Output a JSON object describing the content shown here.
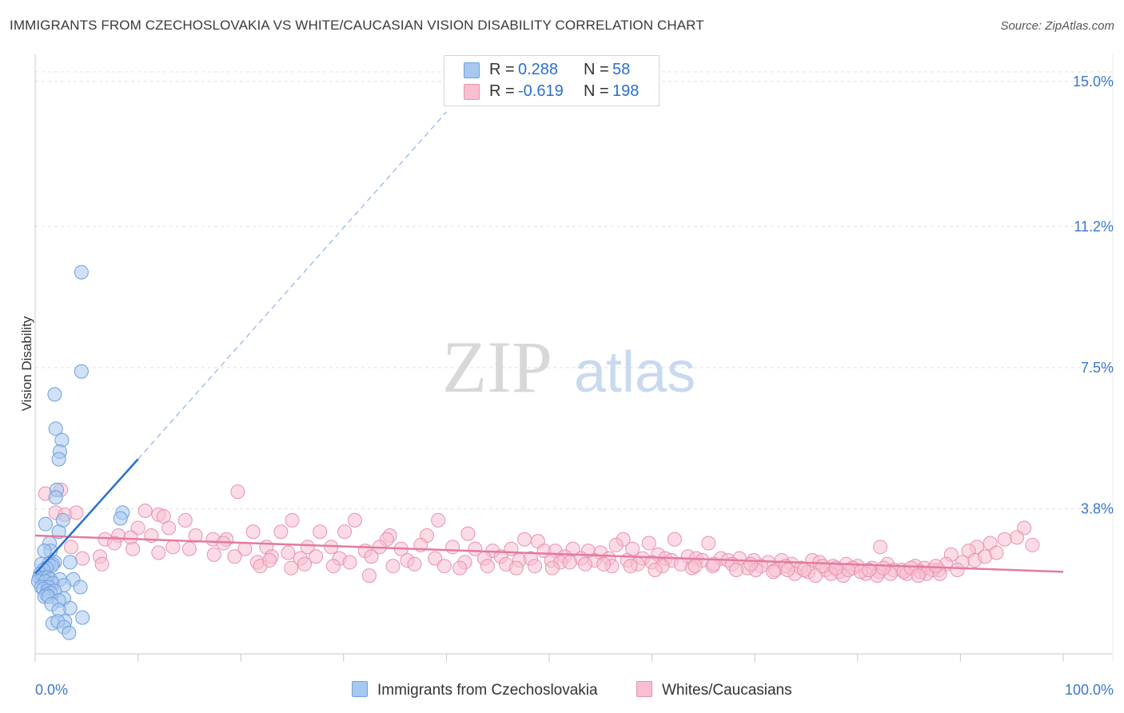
{
  "title": "IMMIGRANTS FROM CZECHOSLOVAKIA VS WHITE/CAUCASIAN VISION DISABILITY CORRELATION CHART",
  "source": "Source: ZipAtlas.com",
  "watermark": {
    "zip": "ZIP",
    "atlas": "atlas"
  },
  "legend": [
    {
      "r_label": "R =",
      "r_value": "0.288",
      "n_label": "N =",
      "n_value": "58",
      "color": "#a9c8f0",
      "border": "#6f9fdc"
    },
    {
      "r_label": "R =",
      "r_value": "-0.619",
      "n_label": "N =",
      "n_value": "198",
      "color": "#f7bfd0",
      "border": "#e792ad"
    }
  ],
  "bottom_legend": [
    "Immigrants from Czechoslovakia",
    "Whites/Caucasians"
  ],
  "chart_data": {
    "type": "scatter",
    "title": "IMMIGRANTS FROM CZECHOSLOVAKIA VS WHITE/CAUCASIAN VISION DISABILITY CORRELATION CHART",
    "xlabel": "",
    "ylabel": "Vision Disability",
    "xlim": [
      0,
      100
    ],
    "ylim": [
      0,
      15.5
    ],
    "x_tick_labels": [
      "0.0%",
      "100.0%"
    ],
    "y_ticks": [
      3.8,
      7.5,
      11.2,
      15.0
    ],
    "y_tick_labels": [
      "3.8%",
      "7.5%",
      "11.2%",
      "15.0%"
    ],
    "grid": true,
    "series": [
      {
        "name": "Immigrants from Czechoslovakia",
        "color": "#5f95dc",
        "fill": "#a9c8f0",
        "R": 0.288,
        "N": 58,
        "trend": {
          "x0": 0,
          "y0": 2.1,
          "x1": 10,
          "y1": 5.1,
          "dash_to_x": 40,
          "dash_to_y": 14.2
        },
        "points": [
          [
            4.5,
            10.0
          ],
          [
            4.5,
            7.4
          ],
          [
            1.9,
            6.8
          ],
          [
            2.0,
            5.9
          ],
          [
            2.6,
            5.6
          ],
          [
            2.4,
            5.3
          ],
          [
            2.3,
            5.1
          ],
          [
            2.1,
            4.3
          ],
          [
            2.0,
            4.1
          ],
          [
            8.5,
            3.7
          ],
          [
            8.3,
            3.55
          ],
          [
            2.7,
            3.5
          ],
          [
            1.0,
            3.4
          ],
          [
            2.3,
            3.2
          ],
          [
            1.4,
            2.9
          ],
          [
            1.5,
            2.7
          ],
          [
            0.9,
            2.7
          ],
          [
            3.4,
            2.4
          ],
          [
            1.9,
            2.4
          ],
          [
            1.7,
            2.35
          ],
          [
            1.3,
            2.35
          ],
          [
            1.6,
            2.3
          ],
          [
            0.6,
            2.35
          ],
          [
            1.1,
            2.25
          ],
          [
            0.8,
            2.2
          ],
          [
            0.5,
            2.1
          ],
          [
            0.4,
            2.0
          ],
          [
            0.7,
            1.95
          ],
          [
            0.9,
            2.0
          ],
          [
            1.2,
            2.0
          ],
          [
            1.5,
            1.95
          ],
          [
            3.7,
            1.95
          ],
          [
            2.4,
            1.95
          ],
          [
            0.3,
            1.9
          ],
          [
            1.0,
            1.9
          ],
          [
            1.7,
            1.85
          ],
          [
            2.8,
            1.8
          ],
          [
            0.6,
            1.75
          ],
          [
            1.3,
            1.75
          ],
          [
            4.4,
            1.75
          ],
          [
            0.8,
            1.7
          ],
          [
            1.2,
            1.65
          ],
          [
            1.9,
            1.65
          ],
          [
            1.5,
            1.6
          ],
          [
            1.1,
            1.55
          ],
          [
            0.9,
            1.5
          ],
          [
            1.3,
            1.5
          ],
          [
            2.8,
            1.45
          ],
          [
            2.3,
            1.4
          ],
          [
            1.6,
            1.3
          ],
          [
            3.4,
            1.2
          ],
          [
            2.3,
            1.15
          ],
          [
            4.6,
            0.95
          ],
          [
            2.9,
            0.85
          ],
          [
            1.7,
            0.8
          ],
          [
            2.2,
            0.85
          ],
          [
            2.8,
            0.7
          ],
          [
            3.3,
            0.55
          ]
        ]
      },
      {
        "name": "Whites/Caucasians",
        "color": "#e37aa0",
        "fill": "#f7bfd0",
        "R": -0.619,
        "N": 198,
        "trend": {
          "x0": 0,
          "y0": 3.1,
          "x1": 100,
          "y1": 2.15
        },
        "points": [
          [
            1.0,
            4.2
          ],
          [
            2.5,
            4.3
          ],
          [
            19.7,
            4.25
          ],
          [
            2.0,
            3.7
          ],
          [
            2.9,
            3.65
          ],
          [
            4.0,
            3.7
          ],
          [
            10.7,
            3.75
          ],
          [
            12.0,
            3.65
          ],
          [
            12.5,
            3.6
          ],
          [
            14.6,
            3.5
          ],
          [
            25.0,
            3.5
          ],
          [
            31.1,
            3.5
          ],
          [
            39.2,
            3.5
          ],
          [
            10.0,
            3.3
          ],
          [
            13.0,
            3.3
          ],
          [
            6.8,
            3.0
          ],
          [
            8.1,
            3.1
          ],
          [
            9.3,
            3.05
          ],
          [
            11.3,
            3.1
          ],
          [
            15.6,
            3.1
          ],
          [
            17.3,
            3.0
          ],
          [
            18.6,
            3.0
          ],
          [
            21.2,
            3.2
          ],
          [
            23.9,
            3.2
          ],
          [
            27.7,
            3.2
          ],
          [
            30.1,
            3.2
          ],
          [
            34.5,
            3.1
          ],
          [
            34.2,
            3.0
          ],
          [
            38.1,
            3.1
          ],
          [
            42.1,
            3.15
          ],
          [
            47.6,
            3.0
          ],
          [
            48.9,
            2.95
          ],
          [
            57.2,
            3.0
          ],
          [
            59.7,
            2.9
          ],
          [
            62.2,
            3.0
          ],
          [
            56.5,
            2.85
          ],
          [
            58.1,
            2.75
          ],
          [
            65.5,
            2.9
          ],
          [
            82.2,
            2.8
          ],
          [
            96.2,
            3.3
          ],
          [
            95.5,
            3.05
          ],
          [
            94.3,
            3.0
          ],
          [
            92.9,
            2.9
          ],
          [
            91.6,
            2.8
          ],
          [
            90.8,
            2.7
          ],
          [
            89.1,
            2.6
          ],
          [
            97.0,
            2.85
          ],
          [
            3.5,
            2.8
          ],
          [
            7.7,
            2.9
          ],
          [
            9.5,
            2.75
          ],
          [
            13.4,
            2.8
          ],
          [
            15.0,
            2.75
          ],
          [
            18.3,
            2.9
          ],
          [
            20.4,
            2.75
          ],
          [
            22.5,
            2.8
          ],
          [
            24.6,
            2.65
          ],
          [
            26.5,
            2.8
          ],
          [
            28.8,
            2.8
          ],
          [
            32.1,
            2.7
          ],
          [
            33.5,
            2.8
          ],
          [
            35.6,
            2.75
          ],
          [
            37.5,
            2.85
          ],
          [
            40.6,
            2.8
          ],
          [
            42.8,
            2.75
          ],
          [
            44.5,
            2.7
          ],
          [
            46.3,
            2.75
          ],
          [
            49.5,
            2.7
          ],
          [
            50.6,
            2.7
          ],
          [
            52.3,
            2.75
          ],
          [
            53.8,
            2.7
          ],
          [
            55.0,
            2.65
          ],
          [
            60.6,
            2.6
          ],
          [
            61.3,
            2.5
          ],
          [
            63.5,
            2.55
          ],
          [
            64.3,
            2.5
          ],
          [
            66.7,
            2.5
          ],
          [
            67.4,
            2.45
          ],
          [
            68.5,
            2.5
          ],
          [
            69.9,
            2.45
          ],
          [
            71.3,
            2.4
          ],
          [
            72.6,
            2.45
          ],
          [
            73.6,
            2.35
          ],
          [
            75.6,
            2.45
          ],
          [
            76.3,
            2.4
          ],
          [
            77.6,
            2.3
          ],
          [
            78.9,
            2.35
          ],
          [
            80.0,
            2.3
          ],
          [
            81.4,
            2.25
          ],
          [
            82.9,
            2.35
          ],
          [
            84.3,
            2.2
          ],
          [
            85.6,
            2.3
          ],
          [
            86.5,
            2.25
          ],
          [
            87.9,
            2.2
          ],
          [
            88.6,
            2.35
          ],
          [
            90.2,
            2.4
          ],
          [
            91.4,
            2.45
          ],
          [
            92.4,
            2.55
          ],
          [
            93.5,
            2.65
          ],
          [
            4.6,
            2.5
          ],
          [
            6.3,
            2.55
          ],
          [
            12.0,
            2.65
          ],
          [
            17.4,
            2.6
          ],
          [
            19.4,
            2.55
          ],
          [
            21.6,
            2.4
          ],
          [
            23.0,
            2.55
          ],
          [
            25.8,
            2.5
          ],
          [
            27.3,
            2.55
          ],
          [
            29.6,
            2.5
          ],
          [
            32.7,
            2.55
          ],
          [
            36.2,
            2.45
          ],
          [
            38.9,
            2.5
          ],
          [
            41.8,
            2.4
          ],
          [
            43.7,
            2.5
          ],
          [
            45.3,
            2.55
          ],
          [
            47.1,
            2.45
          ],
          [
            48.2,
            2.5
          ],
          [
            50.2,
            2.45
          ],
          [
            51.5,
            2.55
          ],
          [
            53.1,
            2.5
          ],
          [
            54.4,
            2.45
          ],
          [
            55.8,
            2.5
          ],
          [
            57.6,
            2.45
          ],
          [
            59.1,
            2.5
          ],
          [
            60.0,
            2.4
          ],
          [
            61.9,
            2.45
          ],
          [
            62.8,
            2.35
          ],
          [
            64.9,
            2.45
          ],
          [
            65.9,
            2.3
          ],
          [
            67.8,
            2.35
          ],
          [
            69.3,
            2.25
          ],
          [
            70.6,
            2.3
          ],
          [
            72.0,
            2.2
          ],
          [
            73.0,
            2.3
          ],
          [
            74.5,
            2.25
          ],
          [
            75.2,
            2.15
          ],
          [
            76.9,
            2.2
          ],
          [
            78.2,
            2.15
          ],
          [
            79.5,
            2.25
          ],
          [
            80.8,
            2.1
          ],
          [
            82.1,
            2.15
          ],
          [
            83.5,
            2.2
          ],
          [
            84.8,
            2.1
          ],
          [
            86.1,
            2.15
          ],
          [
            87.3,
            2.2
          ],
          [
            89.7,
            2.2
          ],
          [
            6.5,
            2.35
          ],
          [
            21.9,
            2.3
          ],
          [
            26.2,
            2.35
          ],
          [
            29.0,
            2.3
          ],
          [
            34.8,
            2.3
          ],
          [
            36.9,
            2.35
          ],
          [
            39.8,
            2.3
          ],
          [
            45.8,
            2.35
          ],
          [
            48.6,
            2.3
          ],
          [
            51.1,
            2.4
          ],
          [
            53.5,
            2.35
          ],
          [
            56.1,
            2.3
          ],
          [
            58.6,
            2.35
          ],
          [
            61.0,
            2.3
          ],
          [
            63.9,
            2.25
          ],
          [
            66.0,
            2.35
          ],
          [
            68.2,
            2.2
          ],
          [
            70.1,
            2.2
          ],
          [
            71.8,
            2.15
          ],
          [
            73.9,
            2.1
          ],
          [
            75.9,
            2.05
          ],
          [
            77.4,
            2.1
          ],
          [
            78.6,
            2.05
          ],
          [
            80.3,
            2.15
          ],
          [
            81.9,
            2.05
          ],
          [
            83.2,
            2.1
          ],
          [
            84.5,
            2.15
          ],
          [
            86.7,
            2.1
          ],
          [
            88.0,
            2.1
          ],
          [
            22.8,
            2.45
          ],
          [
            30.6,
            2.4
          ],
          [
            44.0,
            2.3
          ],
          [
            52.0,
            2.4
          ],
          [
            57.9,
            2.3
          ],
          [
            64.2,
            2.3
          ],
          [
            69.6,
            2.35
          ],
          [
            73.2,
            2.2
          ],
          [
            76.6,
            2.3
          ],
          [
            79.1,
            2.2
          ],
          [
            82.5,
            2.25
          ],
          [
            85.2,
            2.25
          ],
          [
            87.6,
            2.3
          ],
          [
            32.5,
            2.05
          ],
          [
            24.9,
            2.25
          ],
          [
            41.3,
            2.25
          ],
          [
            46.8,
            2.25
          ],
          [
            50.3,
            2.25
          ],
          [
            55.3,
            2.35
          ],
          [
            60.3,
            2.2
          ],
          [
            74.8,
            2.2
          ],
          [
            77.9,
            2.25
          ],
          [
            81.1,
            2.2
          ],
          [
            85.9,
            2.05
          ]
        ]
      }
    ]
  }
}
